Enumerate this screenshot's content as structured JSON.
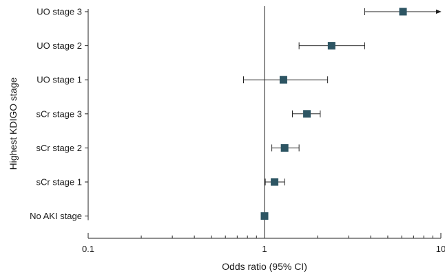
{
  "chart_data": {
    "type": "forest",
    "xlabel": "Odds ratio (95% CI)",
    "ylabel": "Highest KDIGO stage",
    "x_scale": "log",
    "xlim": [
      0.1,
      10
    ],
    "x_ticks": [
      {
        "value": 0.1,
        "label": "0.1"
      },
      {
        "value": 1,
        "label": "1"
      },
      {
        "value": 10,
        "label": "10"
      }
    ],
    "reference_line": 1,
    "grid": false,
    "marker_color": "#2d5563",
    "line_color": "#222222",
    "categories": [
      "UO stage 3",
      "UO stage 2",
      "UO stage 1",
      "sCr stage 3",
      "sCr stage 2",
      "sCr stage 1",
      "No AKI stage"
    ],
    "points": [
      {
        "label": "UO stage 3",
        "or": 6.1,
        "ci_low": 3.7,
        "ci_high": 10,
        "ci_high_truncated": true
      },
      {
        "label": "UO stage 2",
        "or": 2.4,
        "ci_low": 1.57,
        "ci_high": 3.7
      },
      {
        "label": "UO stage 1",
        "or": 1.28,
        "ci_low": 0.76,
        "ci_high": 2.28
      },
      {
        "label": "sCr stage 3",
        "or": 1.74,
        "ci_low": 1.44,
        "ci_high": 2.07
      },
      {
        "label": "sCr stage 2",
        "or": 1.3,
        "ci_low": 1.1,
        "ci_high": 1.57
      },
      {
        "label": "sCr stage 1",
        "or": 1.14,
        "ci_low": 1.01,
        "ci_high": 1.3
      },
      {
        "label": "No AKI stage",
        "or": 1.0,
        "ci_low": 1.0,
        "ci_high": 1.0
      }
    ]
  }
}
